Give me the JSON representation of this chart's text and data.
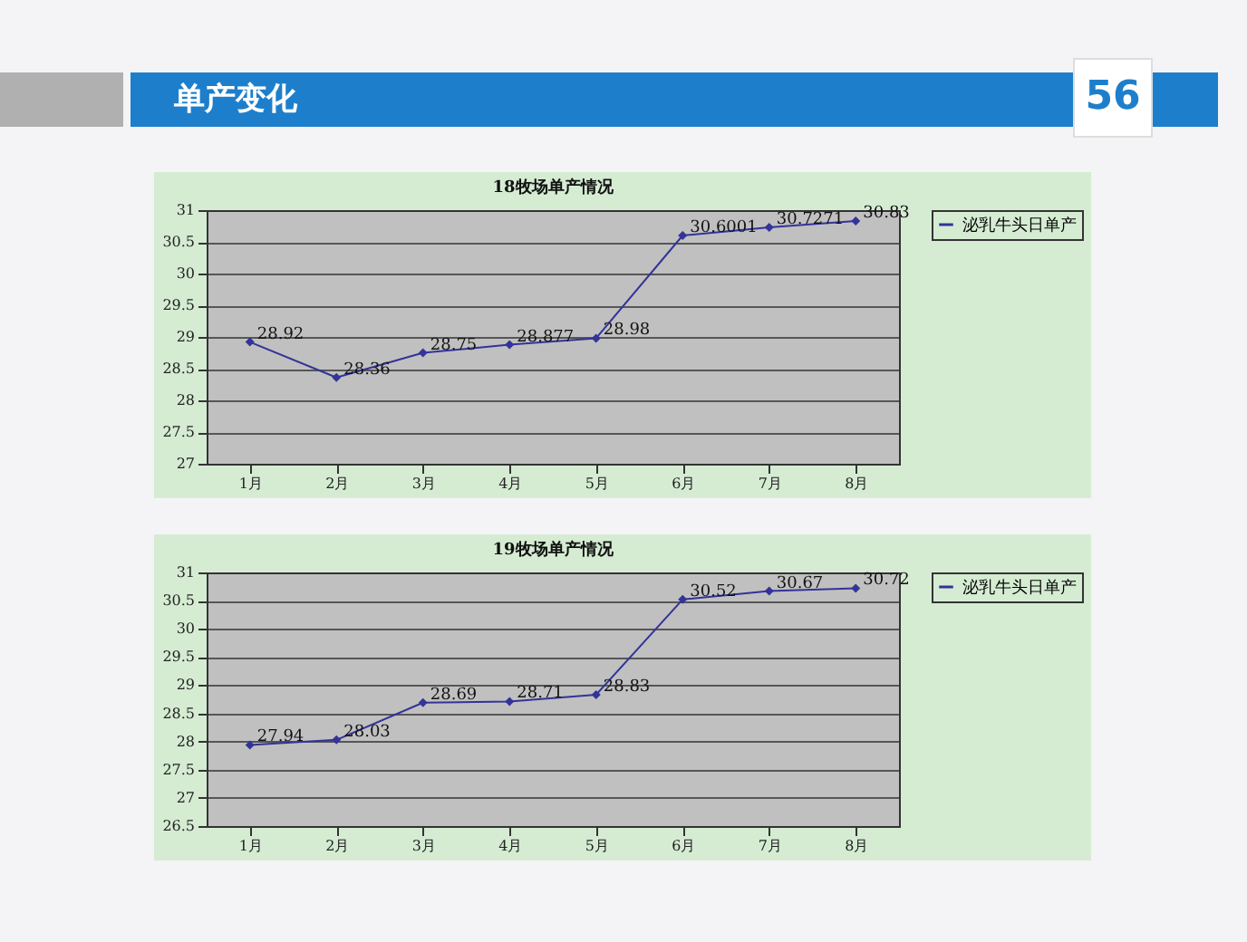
{
  "chart_data": [
    {
      "type": "line",
      "title": "18牧场单产情况",
      "annotations": [
        "单产变化",
        "56"
      ],
      "categories": [
        "1月",
        "2月",
        "3月",
        "4月",
        "5月",
        "6月",
        "7月",
        "8月"
      ],
      "series": [
        {
          "name": "泌乳牛头日单产",
          "color": "#333399",
          "values": [
            28.92,
            28.36,
            28.75,
            28.877,
            28.98,
            30.6001,
            30.7271,
            30.83
          ]
        }
      ],
      "ylim": [
        27,
        31
      ],
      "yticks": [
        27,
        27.5,
        28,
        28.5,
        29,
        29.5,
        30,
        30.5,
        31
      ],
      "grid": "y",
      "legend": "right",
      "marker": "diamond",
      "data_labels": true
    },
    {
      "type": "line",
      "title": "19牧场单产情况",
      "categories": [
        "1月",
        "2月",
        "3月",
        "4月",
        "5月",
        "6月",
        "7月",
        "8月"
      ],
      "series": [
        {
          "name": "泌乳牛头日单产",
          "color": "#333399",
          "values": [
            27.94,
            28.03,
            28.69,
            28.71,
            28.83,
            30.52,
            30.67,
            30.72
          ]
        }
      ],
      "ylim": [
        26.5,
        31
      ],
      "yticks": [
        26.5,
        27,
        27.5,
        28,
        28.5,
        29,
        29.5,
        30,
        30.5,
        31
      ],
      "grid": "y",
      "legend": "right",
      "marker": "diamond",
      "data_labels": true
    }
  ]
}
